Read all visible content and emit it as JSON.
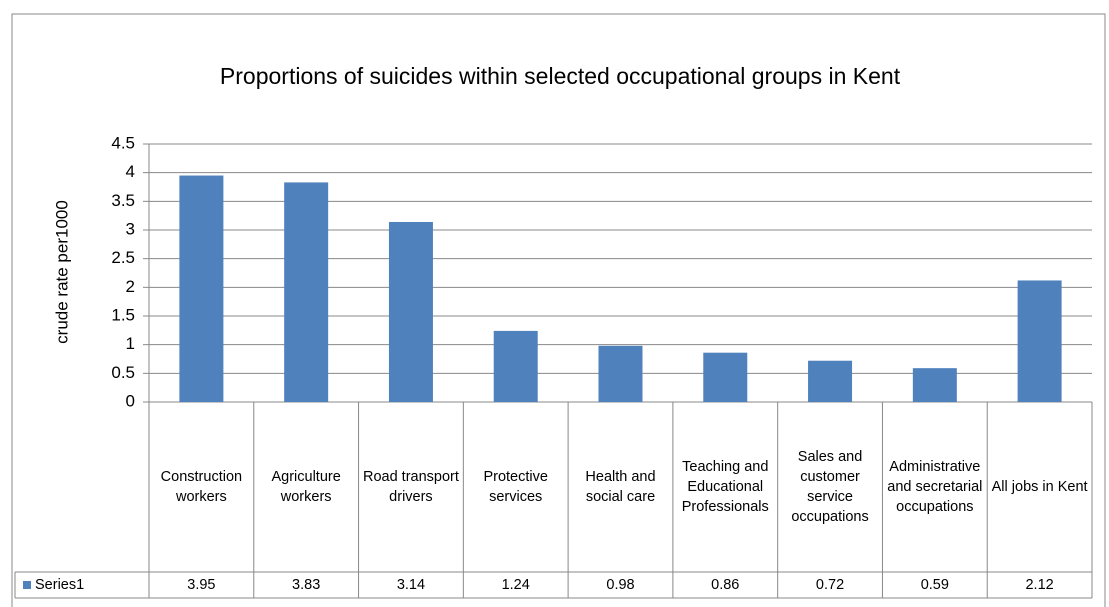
{
  "chart_data": {
    "type": "bar",
    "title": "Proportions  of suicides within selected occupational groups in Kent",
    "y_label": "crude rate per1000",
    "categories": [
      "Construction workers",
      "Agriculture workers",
      "Road transport drivers",
      "Protective services",
      "Health and social care",
      "Teaching and Educational Professionals",
      "Sales and customer service occupations",
      "Administrative and secretarial occupations",
      "All jobs in Kent"
    ],
    "series": [
      {
        "name": "Series1",
        "color": "#4f81bd",
        "values": [
          3.95,
          3.83,
          3.14,
          1.24,
          0.98,
          0.86,
          0.72,
          0.59,
          2.12
        ]
      }
    ],
    "ylim": [
      0,
      4.5
    ],
    "yticks": [
      0,
      0.5,
      1,
      1.5,
      2,
      2.5,
      3,
      3.5,
      4,
      4.5
    ],
    "grid": true,
    "data_table": true
  }
}
